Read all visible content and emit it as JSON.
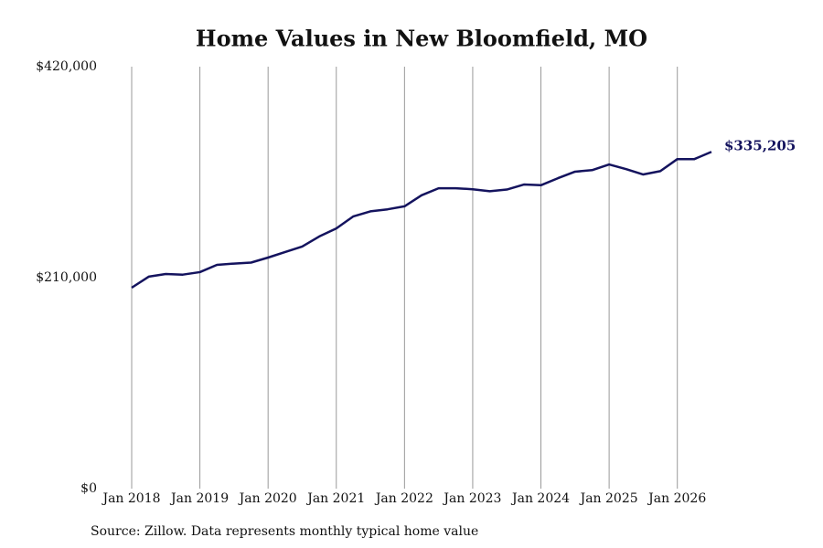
{
  "chart_data": {
    "type": "line",
    "title": "Home Values in New Bloomfield, MO",
    "source": "Source: Zillow. Data represents monthly typical home value",
    "x": [
      "2018-01",
      "2018-04",
      "2018-07",
      "2018-10",
      "2019-01",
      "2019-04",
      "2019-07",
      "2019-10",
      "2020-01",
      "2020-04",
      "2020-07",
      "2020-10",
      "2021-01",
      "2021-04",
      "2021-07",
      "2021-10",
      "2022-01",
      "2022-04",
      "2022-07",
      "2022-10",
      "2023-01",
      "2023-04",
      "2023-07",
      "2023-10",
      "2024-01",
      "2024-04",
      "2024-07",
      "2024-10",
      "2025-01",
      "2025-04",
      "2025-07",
      "2025-10",
      "2026-01",
      "2026-04",
      "2026-07"
    ],
    "series": [
      {
        "name": "Home value",
        "color": "#14135e",
        "values": [
          200000,
          211000,
          213600,
          213000,
          215500,
          222700,
          224000,
          225000,
          230000,
          235500,
          241000,
          251000,
          259000,
          271000,
          276000,
          278000,
          281000,
          292000,
          299000,
          299000,
          298000,
          296000,
          297700,
          302700,
          302000,
          309000,
          315500,
          317000,
          322700,
          318000,
          312700,
          316000,
          328000,
          328000,
          335205
        ],
        "value_labels": [
          null,
          null,
          null,
          null,
          null,
          null,
          null,
          null,
          null,
          null,
          null,
          null,
          null,
          null,
          null,
          null,
          null,
          null,
          null,
          null,
          null,
          null,
          null,
          null,
          null,
          null,
          null,
          null,
          null,
          null,
          null,
          null,
          null,
          null,
          "$335,205"
        ]
      }
    ],
    "xlim": [
      "2018-01",
      "2026-07"
    ],
    "xticks": [
      {
        "value": "2018-01",
        "label": "Jan 2018"
      },
      {
        "value": "2019-01",
        "label": "Jan 2019"
      },
      {
        "value": "2020-01",
        "label": "Jan 2020"
      },
      {
        "value": "2021-01",
        "label": "Jan 2021"
      },
      {
        "value": "2022-01",
        "label": "Jan 2022"
      },
      {
        "value": "2023-01",
        "label": "Jan 2023"
      },
      {
        "value": "2024-01",
        "label": "Jan 2024"
      },
      {
        "value": "2025-01",
        "label": "Jan 2025"
      },
      {
        "value": "2026-01",
        "label": "Jan 2026"
      }
    ],
    "ylim": [
      0,
      420000
    ],
    "yticks": [
      {
        "value": 0,
        "label": "$0"
      },
      {
        "value": 210000,
        "label": "$210,000"
      },
      {
        "value": 420000,
        "label": "$420,000"
      }
    ],
    "grid": true
  }
}
